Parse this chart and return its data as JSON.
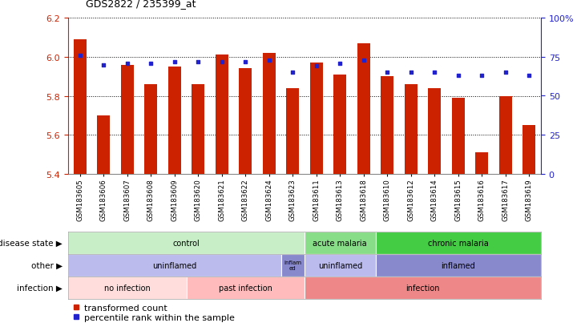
{
  "title": "GDS2822 / 235399_at",
  "samples": [
    "GSM183605",
    "GSM183606",
    "GSM183607",
    "GSM183608",
    "GSM183609",
    "GSM183620",
    "GSM183621",
    "GSM183622",
    "GSM183624",
    "GSM183623",
    "GSM183611",
    "GSM183613",
    "GSM183618",
    "GSM183610",
    "GSM183612",
    "GSM183614",
    "GSM183615",
    "GSM183616",
    "GSM183617",
    "GSM183619"
  ],
  "bar_values": [
    6.09,
    5.7,
    5.96,
    5.86,
    5.95,
    5.86,
    6.01,
    5.94,
    6.02,
    5.84,
    5.97,
    5.91,
    6.07,
    5.9,
    5.86,
    5.84,
    5.79,
    5.51,
    5.8,
    5.65
  ],
  "percentile_values": [
    76,
    70,
    71,
    71,
    72,
    72,
    72,
    72,
    73,
    65,
    69,
    71,
    73,
    65,
    65,
    65,
    63,
    63,
    65,
    63
  ],
  "ylim_left": [
    5.4,
    6.2
  ],
  "ylim_right": [
    0,
    100
  ],
  "bar_color": "#CC2200",
  "dot_color": "#2222CC",
  "background_color": "#FFFFFF",
  "annotation_rows": [
    {
      "label": "disease state",
      "segments": [
        {
          "start": 0,
          "end": 10,
          "text": "control",
          "color": "#C8EEC8"
        },
        {
          "start": 10,
          "end": 13,
          "text": "acute malaria",
          "color": "#88DD88"
        },
        {
          "start": 13,
          "end": 20,
          "text": "chronic malaria",
          "color": "#44CC44"
        }
      ]
    },
    {
      "label": "other",
      "segments": [
        {
          "start": 0,
          "end": 9,
          "text": "uninflamed",
          "color": "#BBBBEE"
        },
        {
          "start": 9,
          "end": 10,
          "text": "inflam\ned",
          "color": "#8888CC"
        },
        {
          "start": 10,
          "end": 13,
          "text": "uninflamed",
          "color": "#BBBBEE"
        },
        {
          "start": 13,
          "end": 20,
          "text": "inflamed",
          "color": "#8888CC"
        }
      ]
    },
    {
      "label": "infection",
      "segments": [
        {
          "start": 0,
          "end": 5,
          "text": "no infection",
          "color": "#FFDDDD"
        },
        {
          "start": 5,
          "end": 10,
          "text": "past infection",
          "color": "#FFBBBB"
        },
        {
          "start": 10,
          "end": 20,
          "text": "infection",
          "color": "#EE8888"
        }
      ]
    }
  ],
  "legend": [
    {
      "color": "#CC2200",
      "label": "transformed count"
    },
    {
      "color": "#2222CC",
      "label": "percentile rank within the sample"
    }
  ]
}
